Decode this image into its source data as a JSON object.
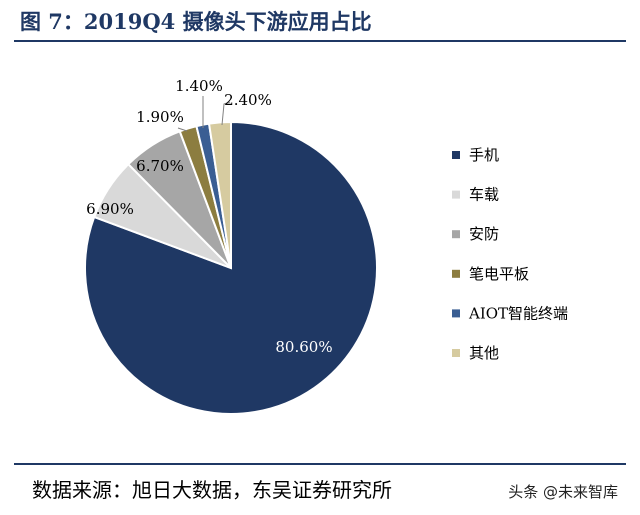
{
  "title": "图 7：2019Q4 摄像头下游应用占比",
  "source": "数据来源：旭日大数据，东吴证券研究所",
  "watermark": "头条 @未来智库",
  "colors": {
    "title": "#1f3864",
    "rule": "#1f3864"
  },
  "chart_data": {
    "type": "pie",
    "title": "2019Q4 摄像头下游应用占比",
    "legend_position": "right",
    "unit": "%",
    "slices": [
      {
        "label": "手机",
        "value": 80.6,
        "value_label": "80.60%",
        "color": "#1f3864"
      },
      {
        "label": "车载",
        "value": 6.9,
        "value_label": "6.90%",
        "color": "#d9d9d9"
      },
      {
        "label": "安防",
        "value": 6.7,
        "value_label": "6.70%",
        "color": "#a6a6a6"
      },
      {
        "label": "笔电平板",
        "value": 1.9,
        "value_label": "1.90%",
        "color": "#8c7d40"
      },
      {
        "label": "AIOT智能终端",
        "value": 1.4,
        "value_label": "1.40%",
        "color": "#3a5e93"
      },
      {
        "label": "其他",
        "value": 2.4,
        "value_label": "2.40%",
        "color": "#d6cba0"
      }
    ]
  }
}
